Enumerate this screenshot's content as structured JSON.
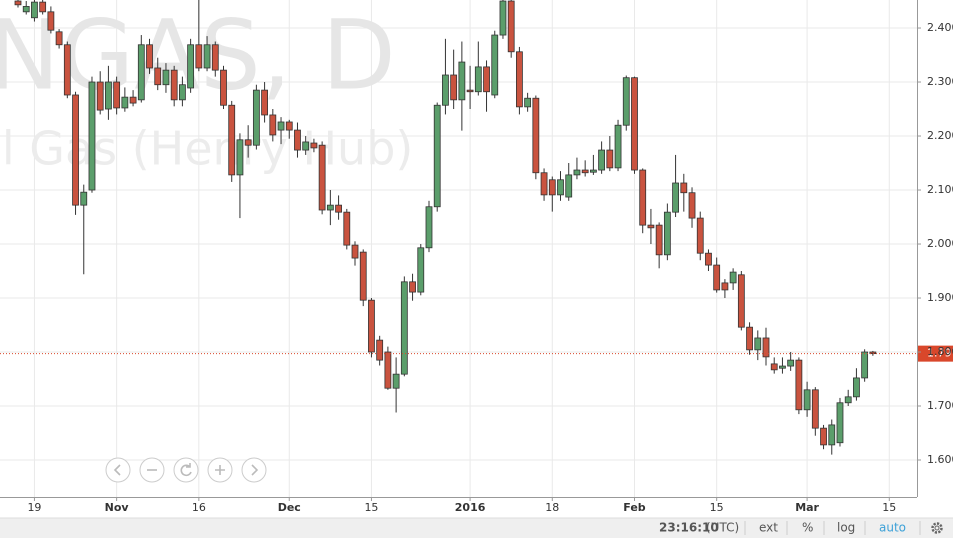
{
  "chart_data": {
    "type": "candlestick",
    "symbol": "NGAS, D",
    "description": "Natural Gas (Henry Hub)",
    "open": [
      2.45,
      2.43,
      2.419,
      2.448,
      2.43,
      2.393,
      2.369,
      2.276,
      2.072,
      2.1,
      2.3,
      2.25,
      2.3,
      2.252,
      2.272,
      2.267,
      2.369,
      2.326,
      2.295,
      2.322,
      2.267,
      2.289,
      2.369,
      2.326,
      2.369,
      2.322,
      2.257,
      2.128,
      2.193,
      2.183,
      2.285,
      2.239,
      2.211,
      2.226,
      2.211,
      2.174,
      2.187,
      2.183,
      2.063,
      2.072,
      2.059,
      1.998,
      1.985,
      1.896,
      1.822,
      1.8,
      1.733,
      1.759,
      1.93,
      1.911,
      1.993,
      2.069,
      2.257,
      2.313,
      2.267,
      2.285,
      2.282,
      2.328,
      2.276,
      2.387,
      2.45,
      2.356,
      2.254,
      2.27,
      2.132,
      2.119,
      2.091,
      2.087,
      2.128,
      2.137,
      2.133,
      2.137,
      2.174,
      2.141,
      2.22,
      2.308,
      2.137,
      2.035,
      2.035,
      1.98,
      2.059,
      2.113,
      2.095,
      2.048,
      1.983,
      1.961,
      1.928,
      1.928,
      1.943,
      1.846,
      1.804,
      1.826,
      1.778,
      1.77,
      1.774,
      1.785,
      1.693,
      1.73,
      1.659,
      1.628,
      1.632,
      1.706,
      1.717,
      1.752,
      1.8
    ],
    "high": [
      2.452,
      2.45,
      2.452,
      2.452,
      2.44,
      2.398,
      2.375,
      2.282,
      2.11,
      2.31,
      2.32,
      2.33,
      2.31,
      2.29,
      2.285,
      2.387,
      2.38,
      2.345,
      2.335,
      2.33,
      2.31,
      2.38,
      2.452,
      2.385,
      2.375,
      2.33,
      2.265,
      2.205,
      2.22,
      2.295,
      2.3,
      2.25,
      2.235,
      2.23,
      2.225,
      2.2,
      2.195,
      2.19,
      2.1,
      2.09,
      2.065,
      2.005,
      1.99,
      1.9,
      1.83,
      1.81,
      1.79,
      1.94,
      1.945,
      2.0,
      2.08,
      2.262,
      2.38,
      2.36,
      2.375,
      2.33,
      2.375,
      2.34,
      2.395,
      2.452,
      2.452,
      2.365,
      2.28,
      2.275,
      2.14,
      2.125,
      2.135,
      2.15,
      2.16,
      2.155,
      2.165,
      2.19,
      2.2,
      2.23,
      2.312,
      2.31,
      2.14,
      2.065,
      2.04,
      2.075,
      2.165,
      2.13,
      2.105,
      2.06,
      1.99,
      1.975,
      1.935,
      1.955,
      1.95,
      1.855,
      1.84,
      1.845,
      1.79,
      1.79,
      1.8,
      1.79,
      1.745,
      1.735,
      1.665,
      1.675,
      1.715,
      1.73,
      1.77,
      1.805,
      1.802
    ],
    "low": [
      2.438,
      2.425,
      2.412,
      2.425,
      2.39,
      2.362,
      2.27,
      2.054,
      1.944,
      2.095,
      2.24,
      2.23,
      2.24,
      2.245,
      2.255,
      2.262,
      2.315,
      2.285,
      2.28,
      2.255,
      2.255,
      2.28,
      2.32,
      2.32,
      2.31,
      2.25,
      2.115,
      2.048,
      2.16,
      2.175,
      2.225,
      2.19,
      2.185,
      2.195,
      2.16,
      2.165,
      2.17,
      2.055,
      2.035,
      2.045,
      1.99,
      1.96,
      1.885,
      1.79,
      1.775,
      1.73,
      1.688,
      1.755,
      1.895,
      1.905,
      1.985,
      2.06,
      2.24,
      2.25,
      2.21,
      2.25,
      2.275,
      2.245,
      2.27,
      2.38,
      2.345,
      2.24,
      2.245,
      2.12,
      2.08,
      2.06,
      2.08,
      2.08,
      2.12,
      2.125,
      2.128,
      2.13,
      2.135,
      2.135,
      2.21,
      2.13,
      2.02,
      2.0,
      1.955,
      1.97,
      2.05,
      2.06,
      2.03,
      1.97,
      1.95,
      1.91,
      1.9,
      1.915,
      1.84,
      1.795,
      1.785,
      1.775,
      1.76,
      1.76,
      1.765,
      1.685,
      1.68,
      1.645,
      1.62,
      1.61,
      1.625,
      1.7,
      1.71,
      1.745,
      1.793
    ],
    "close": [
      2.443,
      2.44,
      2.448,
      2.43,
      2.396,
      2.369,
      2.276,
      2.072,
      2.096,
      2.3,
      2.248,
      2.3,
      2.252,
      2.272,
      2.261,
      2.369,
      2.326,
      2.295,
      2.322,
      2.267,
      2.295,
      2.369,
      2.326,
      2.369,
      2.322,
      2.257,
      2.128,
      2.193,
      2.183,
      2.285,
      2.239,
      2.202,
      2.226,
      2.211,
      2.174,
      2.189,
      2.178,
      2.063,
      2.072,
      2.059,
      1.998,
      1.974,
      1.896,
      1.8,
      1.785,
      1.733,
      1.759,
      1.93,
      1.911,
      1.993,
      2.069,
      2.257,
      2.313,
      2.267,
      2.337,
      2.282,
      2.328,
      2.282,
      2.387,
      2.45,
      2.356,
      2.254,
      2.27,
      2.132,
      2.091,
      2.091,
      2.119,
      2.128,
      2.137,
      2.132,
      2.137,
      2.174,
      2.141,
      2.22,
      2.308,
      2.137,
      2.035,
      2.03,
      1.98,
      2.059,
      2.113,
      2.095,
      2.048,
      1.983,
      1.961,
      1.915,
      1.915,
      1.948,
      1.846,
      1.804,
      1.826,
      1.791,
      1.767,
      1.774,
      1.785,
      1.693,
      1.73,
      1.659,
      1.628,
      1.665,
      1.706,
      1.717,
      1.752,
      1.8,
      1.797
    ],
    "up_color": "#5b9e6b",
    "down_color": "#c9533f",
    "last_price": 1.797,
    "last_price_color": "#d9472b",
    "xlim": [
      -2.19,
      109.37
    ],
    "xticks": [
      {
        "value": 2,
        "label": "19"
      },
      {
        "value": 12,
        "label": "Nov"
      },
      {
        "value": 22,
        "label": "16"
      },
      {
        "value": 33,
        "label": "Dec"
      },
      {
        "value": 43,
        "label": "15"
      },
      {
        "value": 55,
        "label": "2016"
      },
      {
        "value": 65,
        "label": "18"
      },
      {
        "value": 75,
        "label": "Feb"
      },
      {
        "value": 85,
        "label": "15"
      },
      {
        "value": 96,
        "label": "Mar"
      },
      {
        "value": 106,
        "label": "15"
      }
    ],
    "ylim": [
      1.5315,
      2.4519
    ],
    "yticks": [
      {
        "value": 1.6,
        "label": "1.600"
      },
      {
        "value": 1.7,
        "label": "1.700"
      },
      {
        "value": 1.8,
        "label": "1.800"
      },
      {
        "value": 1.9,
        "label": "1.900"
      },
      {
        "value": 2.0,
        "label": "2.000"
      },
      {
        "value": 2.1,
        "label": "2.100"
      },
      {
        "value": 2.2,
        "label": "2.200"
      },
      {
        "value": 2.3,
        "label": "2.300"
      },
      {
        "value": 2.4,
        "label": "2.400"
      }
    ],
    "grid": true
  },
  "toolbar": {
    "time": "23:16:10",
    "timezone": "(UTC)",
    "ext": "ext",
    "percent": "%",
    "log": "log",
    "auto": "auto"
  }
}
